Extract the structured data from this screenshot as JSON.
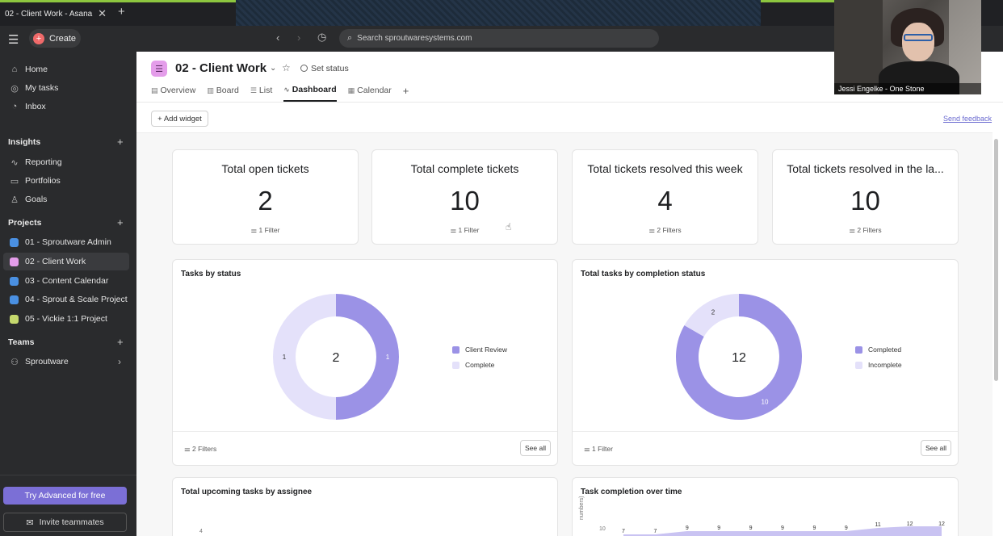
{
  "browser": {
    "tab_title": "02 - Client Work - Asana",
    "close_glyph": "✕",
    "new_tab_glyph": "+"
  },
  "topbar": {
    "menu_glyph": "☰",
    "create_label": "Create",
    "back_glyph": "‹",
    "forward_glyph": "›",
    "history_glyph": "◷",
    "search_placeholder": "Search sproutwaresystems.com"
  },
  "sidebar": {
    "nav": [
      {
        "label": "Home",
        "icon": "home-icon",
        "glyph": "⌂"
      },
      {
        "label": "My tasks",
        "icon": "check-circle-icon",
        "glyph": "◎"
      },
      {
        "label": "Inbox",
        "icon": "bell-icon",
        "glyph": "◔"
      }
    ],
    "insights_label": "Insights",
    "insights": [
      {
        "label": "Reporting",
        "icon": "reporting-icon",
        "glyph": "∿"
      },
      {
        "label": "Portfolios",
        "icon": "folder-icon",
        "glyph": "▭"
      },
      {
        "label": "Goals",
        "icon": "person-icon",
        "glyph": "♙"
      }
    ],
    "projects_label": "Projects",
    "projects": [
      {
        "label": "01 - Sproutware Admin",
        "color": "#4a90e2"
      },
      {
        "label": "02 - Client Work",
        "color": "#e49dea"
      },
      {
        "label": "03 - Content Calendar",
        "color": "#4a90e2"
      },
      {
        "label": "04 - Sprout & Scale Project",
        "color": "#4a90e2"
      },
      {
        "label": "05 - Vickie 1:1 Project",
        "color": "#c5d86d"
      }
    ],
    "teams_label": "Teams",
    "team": {
      "label": "Sproutware",
      "icon": "team-icon",
      "glyph": "⚇"
    },
    "plus_glyph": "+",
    "chevron_glyph": "›",
    "try_label": "Try Advanced for free",
    "invite_label": "Invite teammates",
    "invite_glyph": "✉"
  },
  "header": {
    "project_title": "02 - Client Work",
    "chevron_glyph": "⌄",
    "star_glyph": "☆",
    "set_status": "Set status",
    "tabs": [
      {
        "label": "Overview",
        "glyph": "▤"
      },
      {
        "label": "Board",
        "glyph": "▥"
      },
      {
        "label": "List",
        "glyph": "☰"
      },
      {
        "label": "Dashboard",
        "glyph": "∿"
      },
      {
        "label": "Calendar",
        "glyph": "▦"
      }
    ],
    "add_tab_glyph": "+",
    "add_widget": "+ Add widget",
    "send_feedback": "Send feedback"
  },
  "kpis": [
    {
      "title": "Total open tickets",
      "value": "2",
      "filter": "1 Filter"
    },
    {
      "title": "Total complete tickets",
      "value": "10",
      "filter": "1 Filter"
    },
    {
      "title": "Total tickets resolved this week",
      "value": "4",
      "filter": "2 Filters"
    },
    {
      "title": "Total tickets resolved in the la...",
      "value": "10",
      "filter": "2 Filters"
    }
  ],
  "filter_glyph": "⚌",
  "donut1": {
    "title": "Tasks by status",
    "center": "2",
    "filter": "2 Filters",
    "see_all": "See all",
    "slices": [
      {
        "name": "Client Review",
        "value": 1,
        "color": "#9b92e6",
        "label": "1"
      },
      {
        "name": "Complete",
        "value": 1,
        "color": "#e4e1fa",
        "label": "1"
      }
    ]
  },
  "donut2": {
    "title": "Total tasks by completion status",
    "center": "12",
    "filter": "1 Filter",
    "see_all": "See all",
    "slices": [
      {
        "name": "Completed",
        "value": 10,
        "color": "#9b92e6",
        "label": "10"
      },
      {
        "name": "Incomplete",
        "value": 2,
        "color": "#e4e1fa",
        "label": "2"
      }
    ]
  },
  "chart3": {
    "title": "Total upcoming tasks by assignee",
    "tick": "4"
  },
  "chart4": {
    "title": "Task completion over time",
    "ylabel": "numbers)",
    "tick": "10",
    "values": [
      "7",
      "7",
      "9",
      "9",
      "9",
      "9",
      "9",
      "9",
      "11",
      "12",
      "12"
    ]
  },
  "video": {
    "caption": "Jessi Engelke - One Stone"
  }
}
